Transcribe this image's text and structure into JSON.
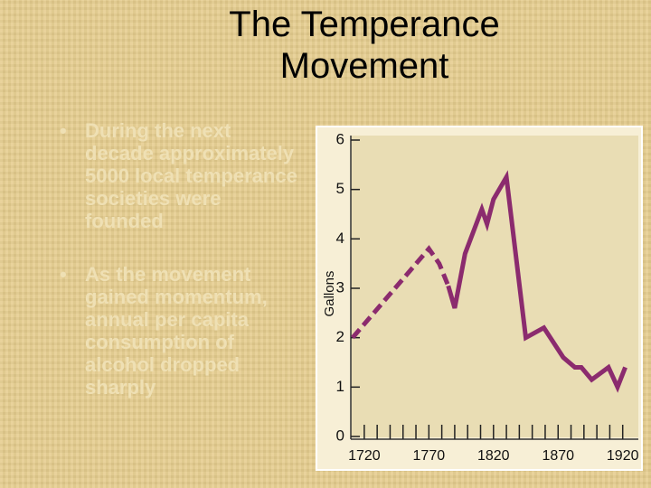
{
  "title": "The Temperance Movement",
  "bullets": [
    "During the next decade approximately 5000 local temperance societies were founded",
    "As the movement gained momentum, annual per capita consumption of alcohol dropped sharply"
  ],
  "chart_data": {
    "type": "line",
    "ylabel": "Gallons",
    "xlim": [
      1711,
      1923
    ],
    "ylim": [
      0,
      6
    ],
    "xticks": [
      1720,
      1770,
      1820,
      1870,
      1920
    ],
    "xminorticks": [
      1730,
      1740,
      1750,
      1760,
      1780,
      1790,
      1800,
      1810,
      1830,
      1840,
      1850,
      1860,
      1880,
      1890,
      1900,
      1910
    ],
    "yticks": [
      0,
      1,
      2,
      3,
      4,
      5,
      6
    ],
    "series": [
      {
        "color": "#8b2b6e",
        "style": "dashed",
        "x": [
          1711,
          1770,
          1778,
          1785
        ],
        "values": [
          2.0,
          3.8,
          3.5,
          3.05
        ]
      },
      {
        "color": "#8b2b6e",
        "style": "solid",
        "x": [
          1785,
          1790,
          1798,
          1811,
          1815,
          1820,
          1830,
          1845,
          1859,
          1874,
          1883,
          1888,
          1896,
          1909,
          1916,
          1922
        ],
        "values": [
          3.05,
          2.6,
          3.7,
          4.6,
          4.3,
          4.8,
          5.25,
          2.0,
          2.2,
          1.6,
          1.4,
          1.4,
          1.15,
          1.4,
          1.0,
          1.4
        ]
      }
    ]
  }
}
